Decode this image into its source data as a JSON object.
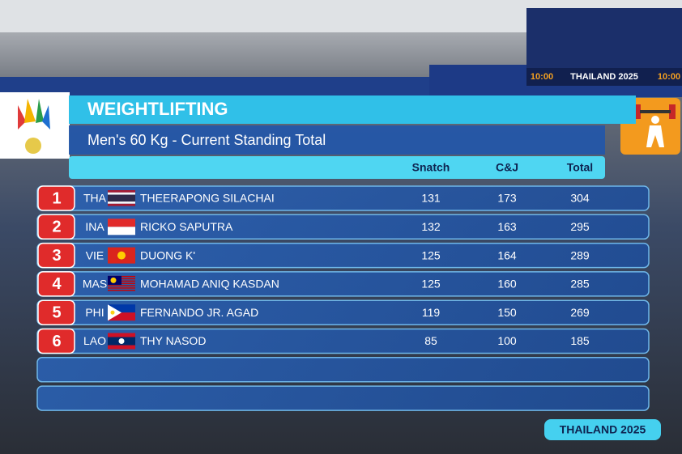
{
  "header": {
    "title": "WEIGHTLIFTING",
    "subtitle": "Men's 60 Kg  -  Current Standing Total"
  },
  "table": {
    "columns": [
      "Snatch",
      "C&J",
      "Total"
    ],
    "rows": [
      {
        "rank": 1,
        "country": "THA",
        "name": "THEERAPONG SILACHAI",
        "snatch": 131,
        "cj": 173,
        "total": 304
      },
      {
        "rank": 2,
        "country": "INA",
        "name": "RICKO SAPUTRA",
        "snatch": 132,
        "cj": 163,
        "total": 295
      },
      {
        "rank": 3,
        "country": "VIE",
        "name": "DUONG K'",
        "snatch": 125,
        "cj": 164,
        "total": 289
      },
      {
        "rank": 4,
        "country": "MAS",
        "name": "MOHAMAD ANIQ KASDAN",
        "snatch": 125,
        "cj": 160,
        "total": 285
      },
      {
        "rank": 5,
        "country": "PHI",
        "name": "FERNANDO JR. AGAD",
        "snatch": 119,
        "cj": 150,
        "total": 269
      },
      {
        "rank": 6,
        "country": "LAO",
        "name": "THY NASOD",
        "snatch": 85,
        "cj": 100,
        "total": 185
      }
    ]
  },
  "footer": "THAILAND 2025",
  "background": {
    "clock_left": "10:00",
    "screen_brand": "THAILAND 2025",
    "clock_right": "10:00"
  }
}
